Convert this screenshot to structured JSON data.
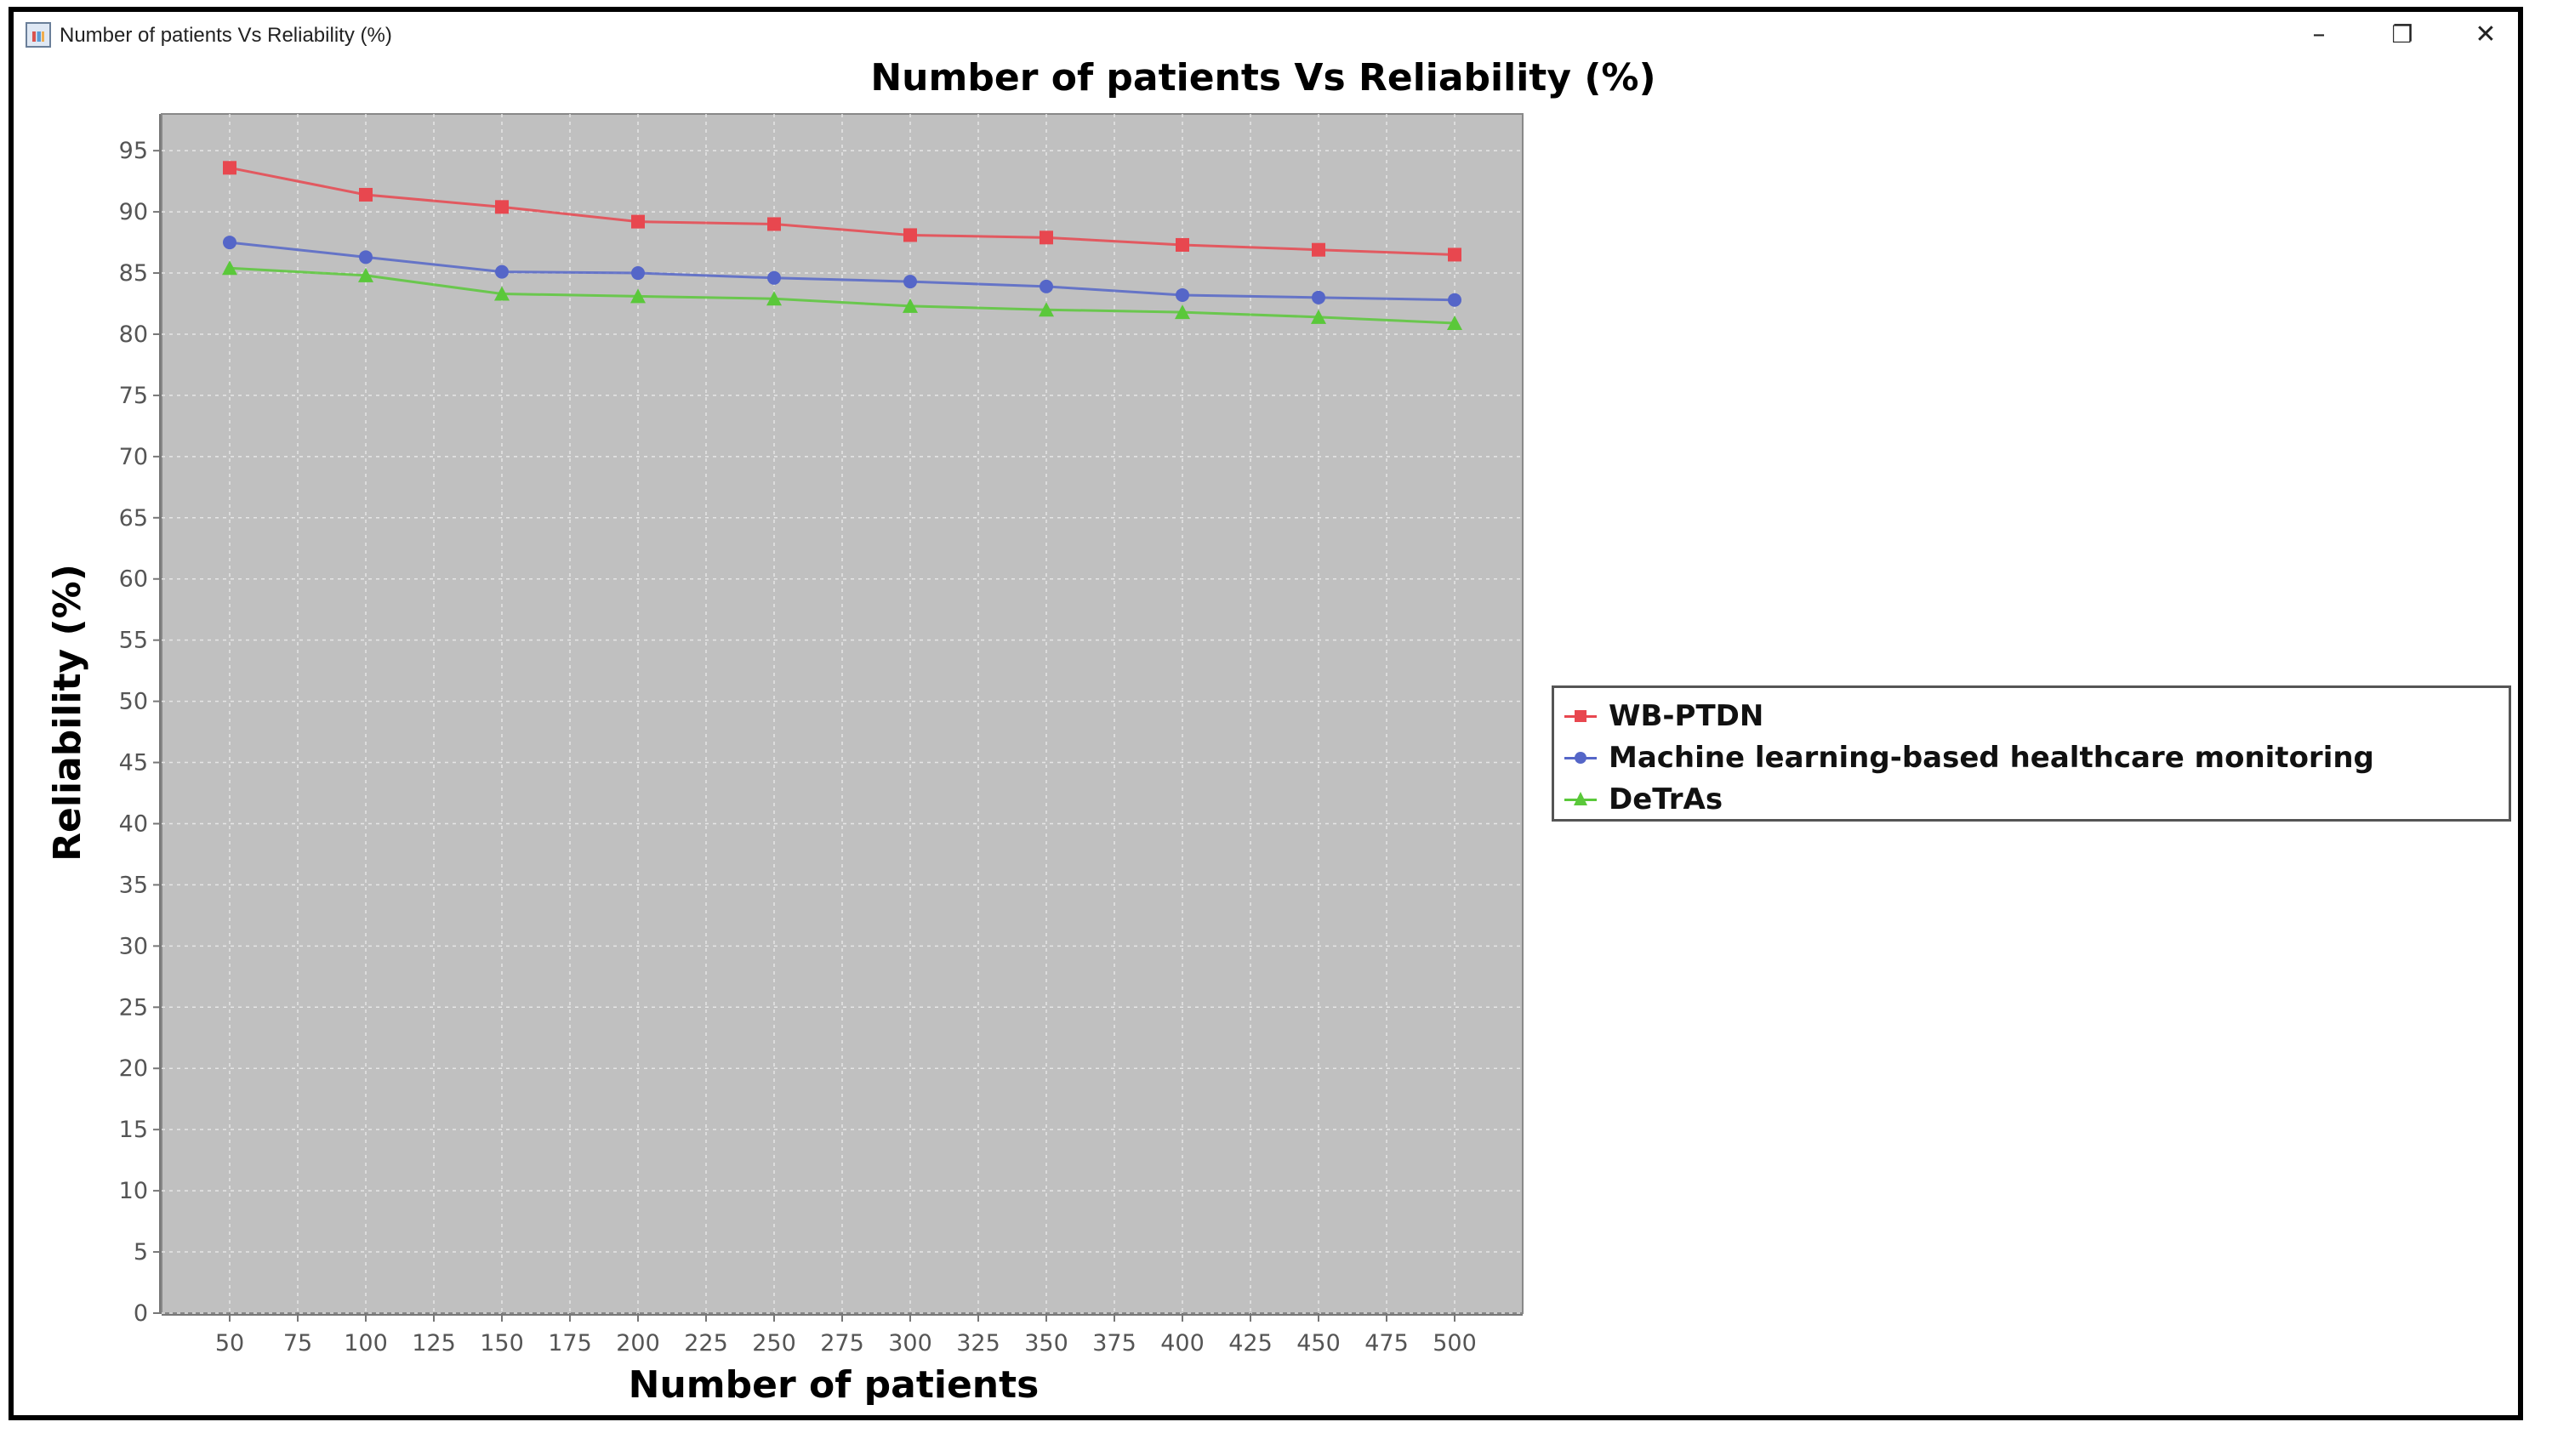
{
  "window": {
    "title": "Number of patients Vs Reliability (%)",
    "controls": {
      "minimize": "–",
      "restore": "❐",
      "close": "✕"
    }
  },
  "chart_data": {
    "type": "line",
    "title": "Number of patients Vs Reliability (%)",
    "xlabel": "Number of patients",
    "ylabel": "Reliability (%)",
    "xlim": [
      25,
      525
    ],
    "ylim": [
      0,
      98
    ],
    "x_ticks": [
      50,
      75,
      100,
      125,
      150,
      175,
      200,
      225,
      250,
      275,
      300,
      325,
      350,
      375,
      400,
      425,
      450,
      475,
      500
    ],
    "y_ticks": [
      0,
      5,
      10,
      15,
      20,
      25,
      30,
      35,
      40,
      45,
      50,
      55,
      60,
      65,
      70,
      75,
      80,
      85,
      90,
      95
    ],
    "grid": true,
    "legend_position": "right",
    "x": [
      50,
      100,
      150,
      200,
      250,
      300,
      350,
      400,
      450,
      500
    ],
    "series": [
      {
        "name": "WB-PTDN",
        "color": "#e8474f",
        "marker": "square",
        "values": [
          93.6,
          91.4,
          90.4,
          89.2,
          89.0,
          88.1,
          87.9,
          87.3,
          86.9,
          86.5
        ]
      },
      {
        "name": "Machine learning-based healthcare monitoring",
        "color": "#5566c8",
        "marker": "circle",
        "values": [
          87.5,
          86.3,
          85.1,
          85.0,
          84.6,
          84.3,
          83.9,
          83.2,
          83.0,
          82.8
        ]
      },
      {
        "name": "DeTrAs",
        "color": "#5ac83a",
        "marker": "triangle",
        "values": [
          85.4,
          84.8,
          83.3,
          83.1,
          82.9,
          82.3,
          82.0,
          81.8,
          81.4,
          80.9
        ]
      }
    ]
  }
}
